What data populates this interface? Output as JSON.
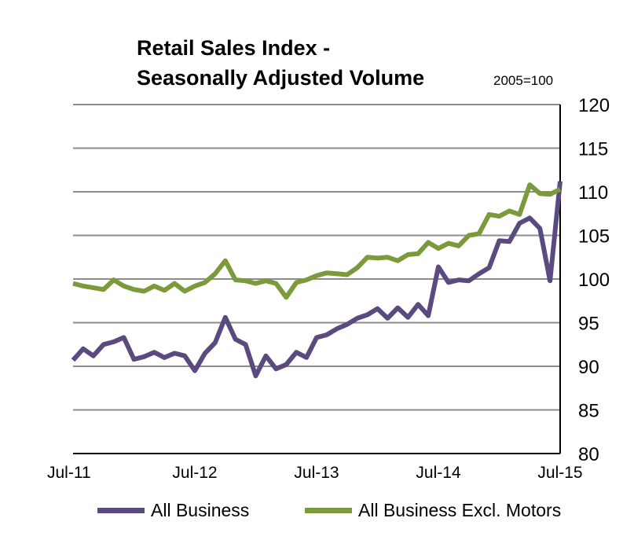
{
  "chart_data": {
    "type": "line",
    "title_line1": "Retail Sales Index -",
    "title_line2": "Seasonally Adjusted Volume",
    "unit_note": "2005=100",
    "xlabel": "",
    "ylabel": "",
    "ylim": [
      80,
      120
    ],
    "y_ticks": [
      "120",
      "115",
      "110",
      "105",
      "100",
      "95",
      "90",
      "85",
      "80"
    ],
    "x_tick_labels": [
      "Jul-11",
      "Jul-12",
      "Jul-13",
      "Jul-14",
      "Jul-15"
    ],
    "grid": true,
    "legend_position": "bottom",
    "series": [
      {
        "name": "All Business",
        "color": "#5b4a80",
        "values": [
          90.7,
          92.0,
          91.2,
          92.5,
          92.8,
          93.3,
          90.8,
          91.1,
          91.6,
          91.0,
          91.5,
          91.2,
          89.5,
          91.5,
          92.7,
          95.6,
          93.1,
          92.5,
          88.9,
          91.2,
          89.7,
          90.2,
          91.6,
          91.0,
          93.3,
          93.6,
          94.3,
          94.8,
          95.5,
          95.9,
          96.6,
          95.5,
          96.7,
          95.6,
          97.1,
          95.8,
          101.4,
          99.6,
          99.9,
          99.8,
          100.6,
          101.3,
          104.4,
          104.3,
          106.4,
          107.0,
          105.8,
          99.8,
          111.2
        ]
      },
      {
        "name": "All Business Excl. Motors",
        "color": "#7a9a3c",
        "values": [
          99.5,
          99.2,
          99.0,
          98.8,
          99.9,
          99.2,
          98.8,
          98.6,
          99.2,
          98.7,
          99.5,
          98.6,
          99.2,
          99.6,
          100.6,
          102.1,
          99.9,
          99.8,
          99.5,
          99.8,
          99.5,
          97.9,
          99.6,
          99.9,
          100.4,
          100.7,
          100.6,
          100.5,
          101.3,
          102.5,
          102.4,
          102.5,
          102.1,
          102.8,
          102.9,
          104.2,
          103.5,
          104.1,
          103.8,
          105.0,
          105.2,
          107.4,
          107.2,
          107.8,
          107.4,
          110.8,
          109.8,
          109.7,
          110.3
        ]
      }
    ]
  }
}
